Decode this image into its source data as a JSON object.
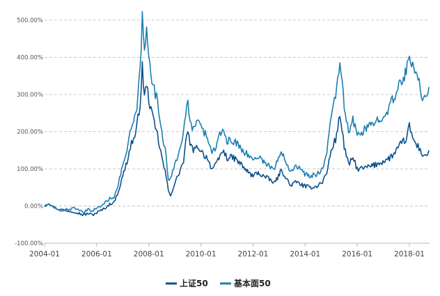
{
  "chart_data": {
    "type": "line",
    "y_unit": "%",
    "ylim": [
      -100,
      500
    ],
    "y_ticks": [
      500,
      400,
      300,
      200,
      100,
      0,
      -100
    ],
    "y_tick_labels": [
      "500.00%",
      "400.00%",
      "300.00%",
      "200.00%",
      "100.00%",
      "0.00%",
      "-100.00%"
    ],
    "x_ticks": [
      "2004-01",
      "2006-01",
      "2008-01",
      "2010-01",
      "2012-01",
      "2014-01",
      "2016-01",
      "2018-01"
    ],
    "x_tick_labels": [
      "2004-01",
      "2006-01",
      "2008-01",
      "2010-01",
      "2012-01",
      "2014-01",
      "2016-01",
      "2018-01"
    ],
    "xlim": [
      "2004-01",
      "2018-10"
    ],
    "grid": "horizontal-dashed",
    "legend_position": "bottom-center",
    "series": [
      {
        "name": "上证50",
        "color": "#0b4f8a",
        "points": [
          [
            "2004-01",
            0
          ],
          [
            "2004-03",
            8
          ],
          [
            "2004-05",
            -2
          ],
          [
            "2004-07",
            -8
          ],
          [
            "2004-09",
            -10
          ],
          [
            "2004-11",
            -12
          ],
          [
            "2005-01",
            -14
          ],
          [
            "2005-03",
            -15
          ],
          [
            "2005-05",
            -20
          ],
          [
            "2005-07",
            -24
          ],
          [
            "2005-09",
            -20
          ],
          [
            "2005-11",
            -24
          ],
          [
            "2006-01",
            -18
          ],
          [
            "2006-03",
            -12
          ],
          [
            "2006-05",
            -5
          ],
          [
            "2006-07",
            5
          ],
          [
            "2006-09",
            10
          ],
          [
            "2006-11",
            40
          ],
          [
            "2007-01",
            80
          ],
          [
            "2007-03",
            120
          ],
          [
            "2007-05",
            170
          ],
          [
            "2007-07",
            190
          ],
          [
            "2007-09",
            280
          ],
          [
            "2007-10",
            370
          ],
          [
            "2007-11",
            300
          ],
          [
            "2007-12",
            320
          ],
          [
            "2008-01",
            290
          ],
          [
            "2008-03",
            230
          ],
          [
            "2008-05",
            190
          ],
          [
            "2008-07",
            130
          ],
          [
            "2008-09",
            80
          ],
          [
            "2008-10",
            40
          ],
          [
            "2008-11",
            30
          ],
          [
            "2009-01",
            60
          ],
          [
            "2009-03",
            90
          ],
          [
            "2009-05",
            120
          ],
          [
            "2009-07",
            210
          ],
          [
            "2009-08",
            160
          ],
          [
            "2009-10",
            150
          ],
          [
            "2009-12",
            160
          ],
          [
            "2010-02",
            140
          ],
          [
            "2010-04",
            130
          ],
          [
            "2010-06",
            100
          ],
          [
            "2010-08",
            110
          ],
          [
            "2010-11",
            150
          ],
          [
            "2011-01",
            130
          ],
          [
            "2011-04",
            130
          ],
          [
            "2011-07",
            115
          ],
          [
            "2011-10",
            95
          ],
          [
            "2012-01",
            80
          ],
          [
            "2012-03",
            90
          ],
          [
            "2012-06",
            80
          ],
          [
            "2012-09",
            70
          ],
          [
            "2012-11",
            62
          ],
          [
            "2013-02",
            95
          ],
          [
            "2013-04",
            80
          ],
          [
            "2013-06",
            55
          ],
          [
            "2013-09",
            65
          ],
          [
            "2013-12",
            55
          ],
          [
            "2014-03",
            50
          ],
          [
            "2014-06",
            52
          ],
          [
            "2014-09",
            65
          ],
          [
            "2014-11",
            90
          ],
          [
            "2015-01",
            150
          ],
          [
            "2015-03",
            180
          ],
          [
            "2015-05",
            240
          ],
          [
            "2015-06",
            210
          ],
          [
            "2015-07",
            160
          ],
          [
            "2015-09",
            110
          ],
          [
            "2015-11",
            130
          ],
          [
            "2016-01",
            100
          ],
          [
            "2016-03",
            100
          ],
          [
            "2016-06",
            105
          ],
          [
            "2016-09",
            110
          ],
          [
            "2016-12",
            118
          ],
          [
            "2017-03",
            125
          ],
          [
            "2017-06",
            140
          ],
          [
            "2017-09",
            165
          ],
          [
            "2017-12",
            185
          ],
          [
            "2018-01",
            215
          ],
          [
            "2018-03",
            175
          ],
          [
            "2018-05",
            160
          ],
          [
            "2018-07",
            140
          ],
          [
            "2018-09",
            135
          ],
          [
            "2018-10",
            150
          ]
        ]
      },
      {
        "name": "基本面50",
        "color": "#1a7fb0",
        "points": [
          [
            "2004-01",
            0
          ],
          [
            "2004-03",
            5
          ],
          [
            "2004-05",
            -4
          ],
          [
            "2004-07",
            -10
          ],
          [
            "2004-09",
            -12
          ],
          [
            "2004-11",
            -10
          ],
          [
            "2005-01",
            -8
          ],
          [
            "2005-03",
            -4
          ],
          [
            "2005-05",
            -14
          ],
          [
            "2005-07",
            -18
          ],
          [
            "2005-09",
            -10
          ],
          [
            "2005-11",
            -12
          ],
          [
            "2006-01",
            -6
          ],
          [
            "2006-03",
            0
          ],
          [
            "2006-05",
            10
          ],
          [
            "2006-07",
            20
          ],
          [
            "2006-09",
            25
          ],
          [
            "2006-11",
            60
          ],
          [
            "2007-01",
            110
          ],
          [
            "2007-03",
            150
          ],
          [
            "2007-05",
            210
          ],
          [
            "2007-07",
            240
          ],
          [
            "2007-09",
            360
          ],
          [
            "2007-10",
            510
          ],
          [
            "2007-11",
            410
          ],
          [
            "2007-12",
            470
          ],
          [
            "2008-01",
            420
          ],
          [
            "2008-03",
            320
          ],
          [
            "2008-05",
            280
          ],
          [
            "2008-07",
            200
          ],
          [
            "2008-09",
            140
          ],
          [
            "2008-10",
            70
          ],
          [
            "2008-11",
            70
          ],
          [
            "2009-01",
            110
          ],
          [
            "2009-03",
            150
          ],
          [
            "2009-05",
            200
          ],
          [
            "2009-07",
            280
          ],
          [
            "2009-08",
            220
          ],
          [
            "2009-10",
            210
          ],
          [
            "2009-12",
            230
          ],
          [
            "2010-02",
            200
          ],
          [
            "2010-04",
            190
          ],
          [
            "2010-06",
            140
          ],
          [
            "2010-08",
            160
          ],
          [
            "2010-11",
            210
          ],
          [
            "2011-01",
            175
          ],
          [
            "2011-04",
            175
          ],
          [
            "2011-07",
            160
          ],
          [
            "2011-10",
            140
          ],
          [
            "2012-01",
            125
          ],
          [
            "2012-03",
            135
          ],
          [
            "2012-06",
            120
          ],
          [
            "2012-09",
            105
          ],
          [
            "2012-11",
            100
          ],
          [
            "2013-02",
            150
          ],
          [
            "2013-04",
            125
          ],
          [
            "2013-06",
            95
          ],
          [
            "2013-09",
            110
          ],
          [
            "2013-12",
            90
          ],
          [
            "2014-03",
            80
          ],
          [
            "2014-06",
            85
          ],
          [
            "2014-09",
            100
          ],
          [
            "2014-11",
            140
          ],
          [
            "2015-01",
            250
          ],
          [
            "2015-03",
            300
          ],
          [
            "2015-05",
            370
          ],
          [
            "2015-06",
            340
          ],
          [
            "2015-07",
            260
          ],
          [
            "2015-09",
            200
          ],
          [
            "2015-11",
            230
          ],
          [
            "2016-01",
            190
          ],
          [
            "2016-03",
            200
          ],
          [
            "2016-06",
            210
          ],
          [
            "2016-09",
            225
          ],
          [
            "2016-12",
            240
          ],
          [
            "2017-03",
            260
          ],
          [
            "2017-06",
            290
          ],
          [
            "2017-09",
            330
          ],
          [
            "2017-12",
            370
          ],
          [
            "2018-01",
            420
          ],
          [
            "2018-03",
            360
          ],
          [
            "2018-05",
            340
          ],
          [
            "2018-07",
            295
          ],
          [
            "2018-09",
            300
          ],
          [
            "2018-10",
            320
          ]
        ]
      }
    ]
  }
}
